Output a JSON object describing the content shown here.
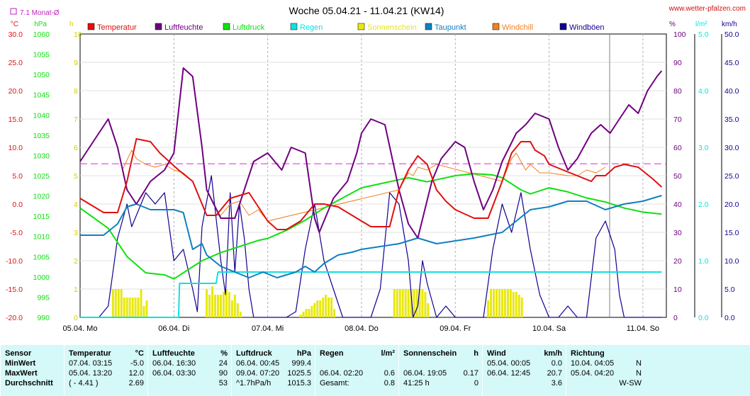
{
  "title": "Woche 05.04.21 - 11.04.21 (KW14)",
  "site": "www.wetter-pfalzen.com",
  "monthly_avg_label": "7.1 Monat-Ø",
  "colors": {
    "temperature": "#e01010",
    "humidity": "#700080",
    "pressure": "#10e010",
    "rain": "#10e0e0",
    "sunshine": "#e8e810",
    "dewpoint": "#1080c0",
    "windchill": "#f08020",
    "gusts": "#100090",
    "avg_line": "#e040e0",
    "grid": "#b0b0b0"
  },
  "axes": {
    "temp": {
      "unit": "°C",
      "ticks": [
        "30.0",
        "25.0",
        "20.0",
        "15.0",
        "10.0",
        "5.0",
        "0.0",
        "-5.0",
        "-10.0",
        "-15.0",
        "-20.0"
      ],
      "range": [
        -20,
        30
      ]
    },
    "pressure": {
      "unit": "hPa",
      "ticks": [
        "1060",
        "1055",
        "1050",
        "1045",
        "1040",
        "1035",
        "1030",
        "1025",
        "1020",
        "1015",
        "1010",
        "1005",
        "1000",
        "995",
        "990"
      ],
      "range": [
        990,
        1060
      ]
    },
    "sun": {
      "unit": "h",
      "ticks": [
        "10",
        "9",
        "8",
        "7",
        "6",
        "5",
        "4",
        "3",
        "2",
        "1",
        "0"
      ],
      "range": [
        0,
        10
      ]
    },
    "humidity": {
      "unit": "%",
      "ticks": [
        "100",
        "90",
        "80",
        "70",
        "60",
        "50",
        "40",
        "30",
        "20",
        "10",
        "0"
      ],
      "range": [
        0,
        100
      ]
    },
    "rain": {
      "unit": "l/m²",
      "ticks": [
        "5.0",
        "4.0",
        "3.0",
        "2.0",
        "1.0",
        "0.0"
      ],
      "range": [
        0,
        5
      ]
    },
    "wind": {
      "unit": "km/h",
      "ticks": [
        "50.0",
        "45.0",
        "40.0",
        "35.0",
        "30.0",
        "25.0",
        "20.0",
        "15.0",
        "10.0",
        "5.0",
        "0.0"
      ],
      "range": [
        0,
        50
      ]
    },
    "x_labels": [
      "05.04. Mo",
      "06.04. Di",
      "07.04. Mi",
      "08.04. Do",
      "09.04. Fr",
      "10.04. Sa",
      "11.04. So"
    ]
  },
  "legend": [
    "Temperatur",
    "Luftfeuchte",
    "Luftdruck",
    "Regen",
    "Sonnenschein",
    "Taupunkt",
    "Windchill",
    "Windböen"
  ],
  "chart_data": {
    "type": "line",
    "title": "Woche 05.04.21 - 11.04.21 (KW14)",
    "x_unit": "days since 05.04. 00:00",
    "monthly_avg_temp": 7.1,
    "series": [
      {
        "name": "Temperatur",
        "axis": "temp",
        "x": [
          0,
          0.25,
          0.4,
          0.5,
          0.6,
          0.75,
          0.85,
          0.95,
          1.05,
          1.2,
          1.35,
          1.45,
          1.6,
          1.8,
          2.0,
          2.1,
          2.2,
          2.35,
          2.5,
          2.6,
          2.75,
          2.9,
          3.0,
          3.1,
          3.2,
          3.3,
          3.4,
          3.5,
          3.6,
          3.7,
          3.8,
          3.9,
          4.0,
          4.2,
          4.35,
          4.5,
          4.6,
          4.7,
          4.8,
          4.85,
          4.95,
          5.0,
          5.15,
          5.3,
          5.45,
          5.5,
          5.6,
          5.7,
          5.8,
          5.95,
          6.1,
          6.2
        ],
        "y": [
          1,
          -1.5,
          -1.5,
          4,
          11.5,
          11,
          9,
          7.5,
          6,
          4,
          -2,
          -2,
          1,
          2,
          -3,
          -4.5,
          -4.5,
          -3,
          0,
          0,
          -0.5,
          -2,
          -3,
          -4,
          -4,
          -4,
          2.5,
          6,
          8.5,
          7,
          2.5,
          0.5,
          -1,
          -2.5,
          -2.5,
          4,
          9,
          11,
          11,
          9.5,
          8.5,
          7,
          6,
          5,
          4,
          5,
          5,
          6.5,
          7,
          6.5,
          4.5,
          3
        ]
      },
      {
        "name": "Luftfeuchte",
        "axis": "humidity",
        "x": [
          0,
          0.1,
          0.3,
          0.4,
          0.5,
          0.6,
          0.75,
          0.9,
          1.0,
          1.1,
          1.2,
          1.3,
          1.35,
          1.5,
          1.65,
          1.75,
          1.85,
          2.0,
          2.15,
          2.25,
          2.4,
          2.5,
          2.55,
          2.7,
          2.85,
          2.95,
          3.0,
          3.1,
          3.25,
          3.4,
          3.5,
          3.6,
          3.75,
          3.85,
          3.9,
          4.0,
          4.1,
          4.2,
          4.3,
          4.4,
          4.5,
          4.65,
          4.75,
          4.85,
          5.0,
          5.1,
          5.2,
          5.3,
          5.45,
          5.55,
          5.65,
          5.75,
          5.85,
          5.95,
          6.05,
          6.15,
          6.2
        ],
        "y": [
          55,
          60,
          70,
          60,
          45,
          40,
          48,
          52,
          58,
          88,
          85,
          60,
          45,
          35,
          35,
          45,
          55,
          58,
          52,
          60,
          58,
          35,
          30,
          42,
          48,
          58,
          65,
          70,
          68,
          45,
          33,
          28,
          48,
          56,
          58,
          62,
          60,
          48,
          38,
          45,
          55,
          65,
          68,
          72,
          70,
          60,
          52,
          56,
          65,
          68,
          65,
          70,
          75,
          72,
          80,
          85,
          87
        ]
      },
      {
        "name": "Luftdruck",
        "axis": "pressure",
        "x": [
          0,
          0.3,
          0.5,
          0.7,
          0.9,
          1.0,
          1.1,
          1.3,
          1.5,
          1.7,
          1.9,
          2.0,
          2.2,
          2.4,
          2.6,
          2.8,
          3.0,
          3.2,
          3.4,
          3.5,
          3.7,
          3.8,
          4.0,
          4.2,
          4.4,
          4.5,
          4.7,
          4.8,
          5.0,
          5.2,
          5.4,
          5.6,
          5.8,
          6.0,
          6.2
        ],
        "y": [
          1017,
          1012,
          1005,
          1001,
          1000.5,
          999.5,
          1001,
          1004,
          1006,
          1007.5,
          1009,
          1009.5,
          1011.5,
          1014,
          1017,
          1019.5,
          1022,
          1023,
          1024,
          1024.5,
          1023.5,
          1024,
          1025,
          1025.5,
          1025.2,
          1024.5,
          1021.5,
          1020.5,
          1022,
          1021,
          1019.5,
          1018.5,
          1017,
          1016,
          1015.5
        ]
      },
      {
        "name": "Regen",
        "axis": "rain",
        "x": [
          0,
          1.05,
          1.06,
          1.45,
          1.47,
          6.2
        ],
        "y": [
          0,
          0,
          0.6,
          0.6,
          0.8,
          0.8
        ]
      },
      {
        "name": "Taupunkt",
        "axis": "temp",
        "x": [
          0,
          0.25,
          0.4,
          0.5,
          0.6,
          0.75,
          0.9,
          1.0,
          1.1,
          1.2,
          1.3,
          1.35,
          1.5,
          1.65,
          1.8,
          1.95,
          2.1,
          2.3,
          2.4,
          2.5,
          2.6,
          2.75,
          2.9,
          3.0,
          3.2,
          3.4,
          3.6,
          3.8,
          4.0,
          4.2,
          4.35,
          4.5,
          4.65,
          4.8,
          5.0,
          5.2,
          5.4,
          5.6,
          5.8,
          6.0,
          6.2
        ],
        "y": [
          -5.5,
          -5.5,
          -3.5,
          -0.5,
          0,
          -1,
          -1,
          -1,
          -1.5,
          -8,
          -7,
          -9,
          -11,
          -12,
          -13,
          -12,
          -13,
          -12,
          -11,
          -12,
          -10.5,
          -9,
          -8.5,
          -8,
          -7.5,
          -7,
          -6,
          -7,
          -6.5,
          -6,
          -5.5,
          -5,
          -3,
          -1,
          -0.5,
          0.5,
          0.5,
          -1,
          0,
          0.5,
          1.5
        ]
      },
      {
        "name": "Windchill",
        "axis": "temp",
        "x": [
          0.45,
          0.55,
          0.6,
          0.7,
          0.8,
          0.9,
          1.0,
          1.1,
          1.2,
          1.35,
          1.5,
          1.6,
          1.7,
          1.8,
          1.9,
          2.0,
          3.4,
          3.5,
          3.55,
          3.6,
          3.7,
          3.8,
          4.5,
          4.6,
          4.65,
          4.7,
          4.75,
          4.8,
          4.9,
          5.0,
          5.2,
          5.3,
          5.4,
          5.5,
          5.6
        ],
        "y": [
          6,
          9.5,
          8,
          7,
          6.5,
          7,
          6,
          5.5,
          4,
          -2,
          -2,
          0,
          0.5,
          -2,
          -1,
          -3,
          2.5,
          5.5,
          5,
          6.5,
          6,
          7,
          4,
          8,
          9,
          7.5,
          6,
          7,
          5.5,
          5.5,
          5,
          5,
          6,
          5.5,
          6.5
        ]
      },
      {
        "name": "Windböen",
        "axis": "wind",
        "x": [
          0,
          0.2,
          0.3,
          0.4,
          0.5,
          0.55,
          0.6,
          0.7,
          0.8,
          0.9,
          1.0,
          1.1,
          1.2,
          1.25,
          1.3,
          1.4,
          1.5,
          1.55,
          1.6,
          1.65,
          1.7,
          1.75,
          1.8,
          1.85,
          1.9,
          2.0,
          2.1,
          2.2,
          2.3,
          2.4,
          2.5,
          2.6,
          2.7,
          2.8,
          2.9,
          3.0,
          3.1,
          3.2,
          3.3,
          3.4,
          3.5,
          3.55,
          3.6,
          3.65,
          3.7,
          3.8,
          3.9,
          4.0,
          4.1,
          4.2,
          4.3,
          4.4,
          4.5,
          4.6,
          4.7,
          4.8,
          4.9,
          5.0,
          5.1,
          5.2,
          5.3,
          5.4,
          5.5,
          5.6,
          5.7,
          5.75,
          5.8,
          5.9,
          6.0,
          6.1,
          6.2
        ],
        "y": [
          0,
          0,
          2,
          14,
          20,
          16,
          18,
          22,
          20,
          22,
          10,
          12,
          5,
          1,
          16,
          25,
          10,
          4,
          22,
          8,
          20,
          14,
          5,
          0,
          0,
          0,
          0,
          0,
          1,
          12,
          20,
          10,
          5,
          0,
          0,
          0,
          0,
          5,
          22,
          20,
          10,
          0,
          2,
          10,
          6,
          0,
          2,
          0,
          0,
          0,
          0,
          12,
          20,
          15,
          22,
          12,
          4,
          0,
          0,
          2,
          0,
          0,
          14,
          17,
          12,
          4,
          0,
          0,
          0,
          0,
          0
        ]
      },
      {
        "name": "Sonnenschein",
        "axis": "sun",
        "type": "bar",
        "x": [
          0.35,
          0.38,
          0.41,
          0.44,
          0.47,
          0.5,
          0.53,
          0.56,
          0.59,
          0.62,
          0.65,
          0.68,
          0.71,
          1.35,
          1.38,
          1.41,
          1.44,
          1.47,
          1.5,
          1.53,
          1.56,
          1.59,
          1.62,
          1.65,
          1.68,
          1.71,
          2.35,
          2.38,
          2.41,
          2.44,
          2.47,
          2.5,
          2.53,
          2.56,
          2.59,
          2.62,
          2.65,
          2.68,
          2.71,
          3.35,
          3.38,
          3.41,
          3.44,
          3.47,
          3.5,
          3.53,
          3.56,
          3.59,
          3.62,
          3.65,
          3.68,
          3.71,
          4.35,
          4.38,
          4.41,
          4.44,
          4.47,
          4.5,
          4.53,
          4.56,
          4.59,
          4.62,
          4.65,
          4.68,
          4.71
        ],
        "y": [
          1,
          1,
          1,
          1,
          0.7,
          0.7,
          0.7,
          0.7,
          0.7,
          0.7,
          1,
          0.4,
          0.6,
          1,
          0.8,
          1.1,
          0.8,
          0.8,
          0.8,
          0.9,
          1,
          0.9,
          0.6,
          0.8,
          0.5,
          0.2,
          0.1,
          0.2,
          0.3,
          0.3,
          0.4,
          0.5,
          0.6,
          0.6,
          0.7,
          0.8,
          0.7,
          0.7,
          0.3,
          1,
          1,
          1,
          1,
          1,
          1,
          1,
          1,
          1,
          1,
          1,
          0.9,
          0.5,
          0.6,
          1,
          1,
          1,
          1,
          1,
          1,
          1,
          1,
          0.9,
          0.9,
          0.8,
          0.7
        ]
      }
    ]
  },
  "stats": {
    "headers": [
      {
        "name": "Sensor",
        "unit": ""
      },
      {
        "name": "Temperatur",
        "unit": "°C"
      },
      {
        "name": "Luftfeuchte",
        "unit": "%"
      },
      {
        "name": "Luftdruck",
        "unit": "hPa"
      },
      {
        "name": "Regen",
        "unit": "l/m²"
      },
      {
        "name": "Sonnenschein",
        "unit": "h"
      },
      {
        "name": "Wind",
        "unit": "km/h"
      },
      {
        "name": "Richtung",
        "unit": ""
      }
    ],
    "rows": [
      {
        "label": "MinWert",
        "cells": [
          [
            "07.04.  03:15",
            "-5.0"
          ],
          [
            "06.04.  16:30",
            "24"
          ],
          [
            "06.04.  00:45",
            "999.4"
          ],
          [
            "",
            ""
          ],
          [
            "",
            ""
          ],
          [
            "05.04.  00:05",
            "0.0"
          ],
          [
            "10.04.  04:05",
            "N"
          ]
        ]
      },
      {
        "label": "MaxWert",
        "cells": [
          [
            "05.04.  13:20",
            "12.0"
          ],
          [
            "06.04.  03:30",
            "90"
          ],
          [
            "09.04.  07:20",
            "1025.5"
          ],
          [
            "06.04.  02:20",
            "0.6"
          ],
          [
            "06.04.  19:05",
            "0.17"
          ],
          [
            "06.04.  12:45",
            "20.7"
          ],
          [
            "05.04.  04:20",
            "N"
          ]
        ]
      },
      {
        "label": "Durchschnitt",
        "cells": [
          [
            "( - 4.41 )",
            "2.69"
          ],
          [
            "",
            "53"
          ],
          [
            "^1.7hPa/h",
            "1015.3"
          ],
          [
            "Gesamt:",
            "0.8"
          ],
          [
            "41:25 h",
            "0"
          ],
          [
            "",
            "3.6"
          ],
          [
            "",
            "W-SW"
          ]
        ]
      }
    ]
  }
}
